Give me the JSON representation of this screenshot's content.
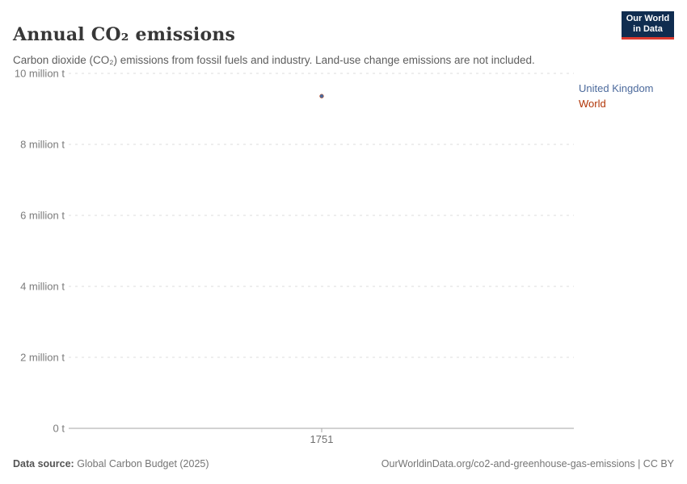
{
  "header": {
    "title": "Annual CO₂ emissions",
    "subtitle": "Carbon dioxide (CO₂) emissions from fossil fuels and industry. Land-use change emissions are not included.",
    "logo_line1": "Our World",
    "logo_line2": "in Data",
    "logo_bg_color": "#102d50",
    "logo_underline_color": "#dc3a2f"
  },
  "legend": {
    "items": [
      {
        "label": "United Kingdom",
        "color": "#4C6A9C"
      },
      {
        "label": "World",
        "color": "#B13507"
      }
    ]
  },
  "footer": {
    "datasource_label": "Data source:",
    "datasource_value": "Global Carbon Budget (2025)",
    "rights": "OurWorldinData.org/co2-and-greenhouse-gas-emissions | CC BY"
  },
  "chart_data": {
    "type": "scatter",
    "title": "Annual CO₂ emissions",
    "xlabel": "",
    "ylabel": "",
    "x": [
      1751
    ],
    "xtick_labels": [
      "1751"
    ],
    "series": [
      {
        "name": "World",
        "color": "#B13507",
        "values": [
          9360000
        ]
      },
      {
        "name": "United Kingdom",
        "color": "#4C6A9C",
        "values": [
          9360000
        ]
      }
    ],
    "ylim": [
      0,
      10000000
    ],
    "yticks": [
      0,
      2000000,
      4000000,
      6000000,
      8000000,
      10000000
    ],
    "ytick_labels": [
      "0 t",
      "2 million t",
      "4 million t",
      "6 million t",
      "8 million t",
      "10 million t"
    ],
    "grid": "horizontal-dashed",
    "legend_position": "right",
    "grid_color": "#dcdcdc",
    "axis_color": "#a5a5a5",
    "tick_label_color": "#7b7b7b"
  }
}
